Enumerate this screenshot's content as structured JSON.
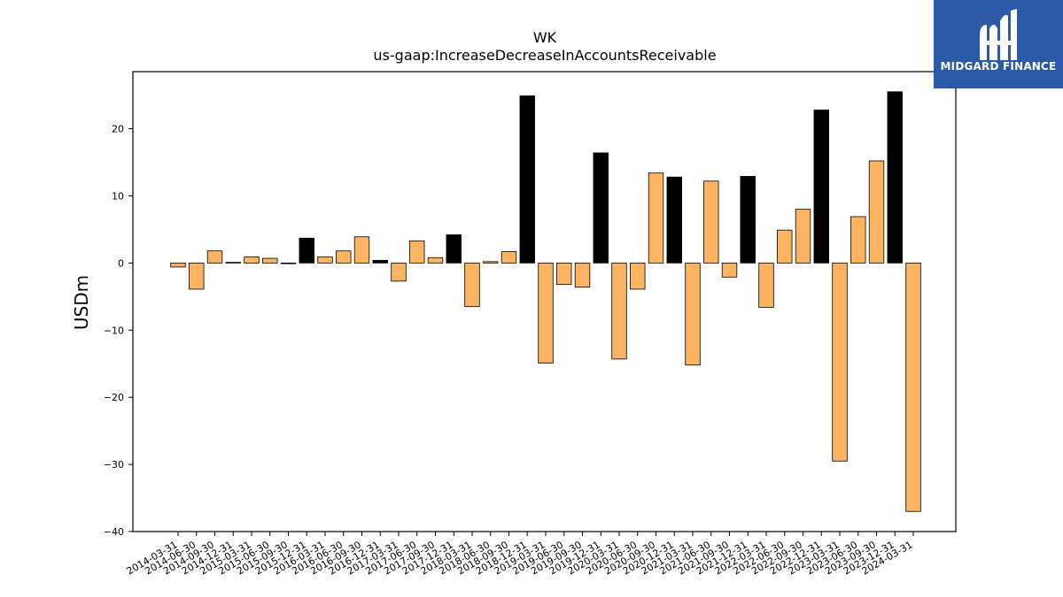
{
  "logo": {
    "text": "MIDGARD FINANCE",
    "icon": "mf-monogram-icon",
    "background": "#2d5aa6"
  },
  "chart_data": {
    "type": "bar",
    "title": "WK",
    "subtitle": "us-gaap:IncreaseDecreaseInAccountsReceivable",
    "xlabel": "",
    "ylabel": "USDm",
    "ylim": [
      -40,
      28.5
    ],
    "yticks": [
      20,
      10,
      0,
      -10,
      -20,
      -30,
      -40
    ],
    "ytick_labels": [
      "20",
      "10",
      "0",
      "−10",
      "−20",
      "−30",
      "−40"
    ],
    "grid": false,
    "colors": {
      "quarter": "#fdb462",
      "year_end": "#000000",
      "edge": "#000000"
    },
    "categories": [
      "2014-03-31",
      "2014-06-30",
      "2014-09-30",
      "2014-12-31",
      "2015-03-31",
      "2015-06-30",
      "2015-09-30",
      "2015-12-31",
      "2016-03-31",
      "2016-06-30",
      "2016-09-30",
      "2016-12-31",
      "2017-03-31",
      "2017-06-30",
      "2017-09-30",
      "2017-12-31",
      "2018-03-31",
      "2018-06-30",
      "2018-09-30",
      "2018-12-31",
      "2019-03-31",
      "2019-06-30",
      "2019-09-30",
      "2019-12-31",
      "2020-03-31",
      "2020-06-30",
      "2020-09-30",
      "2020-12-31",
      "2021-03-31",
      "2021-06-30",
      "2021-09-30",
      "2021-12-31",
      "2022-03-31",
      "2022-06-30",
      "2022-09-30",
      "2022-12-31",
      "2023-03-31",
      "2023-06-30",
      "2023-09-30",
      "2023-12-31",
      "2024-03-31"
    ],
    "values": [
      -0.6,
      -3.9,
      1.8,
      0.1,
      0.9,
      0.7,
      -0.1,
      3.7,
      0.9,
      1.8,
      3.9,
      0.4,
      -2.7,
      3.3,
      0.8,
      4.2,
      -6.5,
      0.2,
      1.7,
      24.9,
      -14.9,
      -3.2,
      -3.6,
      16.4,
      -14.3,
      -3.9,
      13.4,
      12.8,
      -15.2,
      12.2,
      -2.1,
      12.9,
      -6.6,
      4.9,
      8.0,
      22.8,
      -29.5,
      6.9,
      15.2,
      25.5,
      -37.0
    ]
  }
}
